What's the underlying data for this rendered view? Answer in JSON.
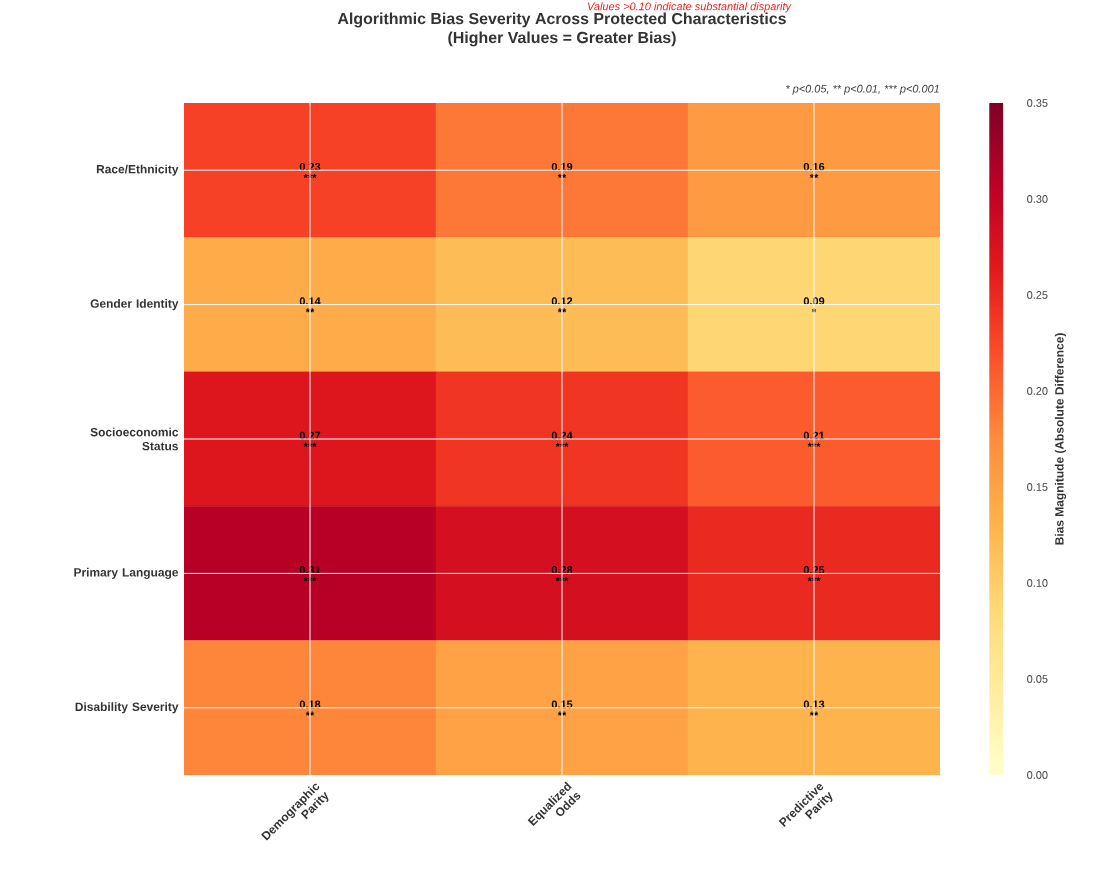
{
  "chart_data": {
    "type": "heatmap",
    "title": "Algorithmic Bias Severity Across Protected Characteristics\n(Higher Values = Greater Bias)",
    "categories": [
      "Demographic Parity",
      "Equalized Odds",
      "Predictive Parity"
    ],
    "y_categories": [
      "Race/Ethnicity",
      "Gender Identity",
      "Socioeconomic Status",
      "Primary Language",
      "Disability Severity"
    ],
    "cells": [
      [
        0.23,
        0.19,
        0.16
      ],
      [
        0.14,
        0.12,
        0.09
      ],
      [
        0.27,
        0.24,
        0.21
      ],
      [
        0.31,
        0.28,
        0.25
      ],
      [
        0.18,
        0.15,
        0.13
      ]
    ],
    "cell_labels": [
      [
        "0.23\n***",
        "0.19\n**",
        "0.16\n**"
      ],
      [
        "0.14\n**",
        "0.12\n**",
        "0.09\n*"
      ],
      [
        "0.27\n***",
        "0.24\n***",
        "0.21\n***"
      ],
      [
        "0.31\n***",
        "0.28\n***",
        "0.25\n***"
      ],
      [
        "0.18\n**",
        "0.15\n**",
        "0.13\n**"
      ]
    ],
    "clim": [
      0,
      0.35
    ],
    "cticks": [
      {
        "value": 0,
        "label": "0.00"
      },
      {
        "value": 0.05,
        "label": "0.05"
      },
      {
        "value": 0.1,
        "label": "0.10"
      },
      {
        "value": 0.15,
        "label": "0.15"
      },
      {
        "value": 0.2,
        "label": "0.20"
      },
      {
        "value": 0.25,
        "label": "0.25"
      },
      {
        "value": 0.3,
        "label": "0.30"
      },
      {
        "value": 0.35,
        "label": "0.35"
      }
    ],
    "clabel": "Bias Magnitude (Absolute Difference)",
    "grid": true,
    "annotations": [
      "Values >0.10 indicate substantial disparity",
      "* p<0.05, ** p<0.01, *** p<0.001"
    ]
  }
}
